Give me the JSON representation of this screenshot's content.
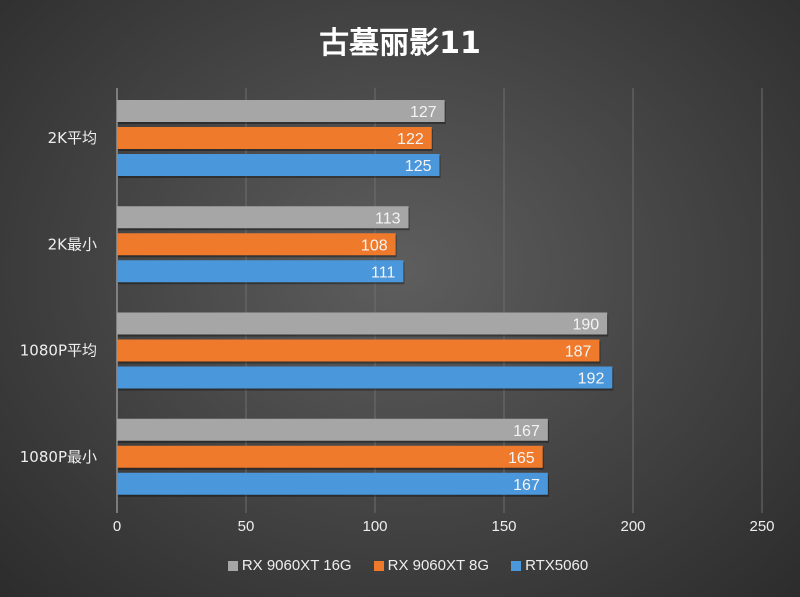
{
  "chart_data": {
    "type": "bar",
    "orientation": "horizontal",
    "title": "古墓丽影11",
    "categories": [
      "2K平均",
      "2K最小",
      "1080P平均",
      "1080P最小"
    ],
    "series": [
      {
        "name": "RX 9060XT 16G",
        "color": "#a6a6a6",
        "values": [
          127,
          113,
          190,
          167
        ]
      },
      {
        "name": "RX 9060XT 8G",
        "color": "#ef7a2c",
        "values": [
          122,
          108,
          187,
          165
        ]
      },
      {
        "name": "RTX5060",
        "color": "#4a97dc",
        "values": [
          125,
          111,
          192,
          167
        ]
      }
    ],
    "xlim": [
      0,
      250
    ],
    "xticks": [
      0,
      50,
      100,
      150,
      200,
      250
    ],
    "grid": true,
    "data_labels": true,
    "legend_position": "bottom"
  }
}
